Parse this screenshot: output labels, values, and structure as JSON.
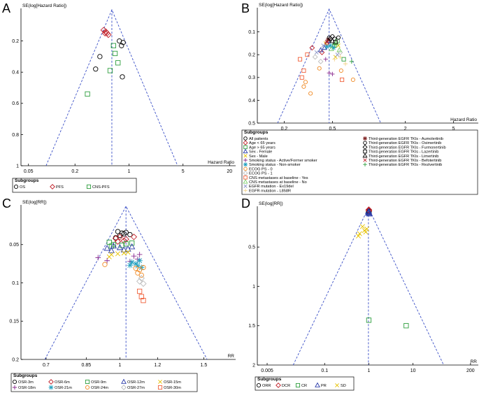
{
  "chart_data": [
    {
      "panel": "A",
      "type": "scatter",
      "ylabel": "SE(log[Hazard Ratio])",
      "xlabel": "Hazard Ratio",
      "xscale": "log",
      "xlim": [
        0.04,
        24
      ],
      "ylim": [
        0,
        1
      ],
      "yinvert": true,
      "xticks": [
        0.05,
        0.2,
        1,
        5,
        20
      ],
      "xtick_labels": [
        "0.05",
        "0.2",
        "1",
        "5",
        "20"
      ],
      "yticks": [
        0.2,
        0.4,
        0.6,
        0.8,
        1
      ],
      "ytick_labels": [
        "0.2",
        "0.4",
        "0.6",
        "0.8",
        "1"
      ],
      "pooled_estimate": 0.6,
      "funnel": true,
      "series": [
        {
          "name": "OS",
          "marker": "circle",
          "color": "#000000",
          "points": [
            [
              0.75,
              0.2
            ],
            [
              0.84,
              0.21
            ],
            [
              0.8,
              0.23
            ],
            [
              0.42,
              0.3
            ],
            [
              0.37,
              0.38
            ],
            [
              0.82,
              0.43
            ]
          ]
        },
        {
          "name": "PFS",
          "marker": "diamond",
          "color": "#c0202a",
          "points": [
            [
              0.47,
              0.13
            ],
            [
              0.5,
              0.14
            ],
            [
              0.52,
              0.15
            ],
            [
              0.54,
              0.16
            ],
            [
              0.49,
              0.15
            ]
          ]
        },
        {
          "name": "CNS-PFS",
          "marker": "square",
          "color": "#2e9e3e",
          "points": [
            [
              0.63,
              0.23
            ],
            [
              0.66,
              0.28
            ],
            [
              0.72,
              0.34
            ],
            [
              0.57,
              0.39
            ],
            [
              0.29,
              0.54
            ]
          ]
        }
      ],
      "legend": {
        "title": "Subgroups",
        "entries": [
          "OS",
          "PFS",
          "CNS-PFS"
        ]
      }
    },
    {
      "panel": "B",
      "type": "scatter",
      "ylabel": "SE(log[Hazard Ratio])",
      "xlabel": "Hazard Ratio",
      "xscale": "log",
      "xlim": [
        0.12,
        8
      ],
      "ylim": [
        0,
        0.5
      ],
      "yinvert": true,
      "xticks": [
        0.2,
        0.5,
        2,
        5
      ],
      "xtick_labels": [
        "0.2",
        "0.5",
        "2",
        "5"
      ],
      "yticks": [
        0.1,
        0.2,
        0.3,
        0.4,
        0.5
      ],
      "ytick_labels": [
        "0.1",
        "0.2",
        "0.3",
        "0.4",
        "0.5"
      ],
      "pooled_estimate": 0.47,
      "funnel": true,
      "series": [
        {
          "name": "All patients",
          "marker": "circle",
          "color": "#000000",
          "points": [
            [
              0.5,
              0.12
            ],
            [
              0.47,
              0.125
            ],
            [
              0.52,
              0.13
            ]
          ]
        },
        {
          "name": "Age < 65 years",
          "marker": "diamond",
          "color": "#c0202a",
          "points": [
            [
              0.34,
              0.17
            ],
            [
              0.45,
              0.15
            ],
            [
              0.41,
              0.19
            ]
          ]
        },
        {
          "name": "Age > 65 years",
          "marker": "square",
          "color": "#2e9e3e",
          "points": [
            [
              0.55,
              0.14
            ],
            [
              0.62,
              0.22
            ],
            [
              0.52,
              0.16
            ]
          ]
        },
        {
          "name": "Sex - Female",
          "marker": "triangle",
          "color": "#2a3aa8",
          "points": [
            [
              0.4,
              0.18
            ],
            [
              0.46,
              0.14
            ],
            [
              0.43,
              0.17
            ]
          ]
        },
        {
          "name": "Sex - Male",
          "marker": "x",
          "color": "#e6c200",
          "points": [
            [
              0.56,
              0.16
            ],
            [
              0.44,
              0.15
            ],
            [
              0.53,
              0.21
            ]
          ]
        },
        {
          "name": "Smoking status - Active/Former smoker",
          "marker": "plus",
          "color": "#8a2a8f",
          "points": [
            [
              0.47,
              0.28
            ],
            [
              0.5,
              0.285
            ],
            [
              0.44,
              0.22
            ]
          ]
        },
        {
          "name": "Smoking status - Non-smoker",
          "marker": "asterisk",
          "color": "#1f9fbf",
          "points": [
            [
              0.48,
              0.16
            ],
            [
              0.51,
              0.17
            ],
            [
              0.45,
              0.165
            ]
          ]
        },
        {
          "name": "ECOG PS - 0",
          "marker": "circle",
          "color": "#f08a24",
          "points": [
            [
              0.39,
              0.26
            ],
            [
              0.3,
              0.32
            ],
            [
              0.29,
              0.34
            ],
            [
              0.33,
              0.37
            ],
            [
              0.59,
              0.27
            ],
            [
              0.74,
              0.31
            ]
          ]
        },
        {
          "name": "ECOG PS - 1",
          "marker": "diamond",
          "color": "#bdbdbd",
          "points": [
            [
              0.36,
              0.21
            ],
            [
              0.58,
              0.19
            ],
            [
              0.4,
              0.23
            ]
          ]
        },
        {
          "name": "CNS metastases at baseline - Yes",
          "marker": "square",
          "color": "#f0603a",
          "points": [
            [
              0.27,
              0.22
            ],
            [
              0.29,
              0.27
            ],
            [
              0.28,
              0.3
            ],
            [
              0.31,
              0.2
            ],
            [
              0.6,
              0.31
            ]
          ]
        },
        {
          "name": "CNS metastases at baseline - No",
          "marker": "triangle",
          "color": "#7dcf6a",
          "points": [
            [
              0.54,
              0.15
            ],
            [
              0.49,
              0.175
            ],
            [
              0.57,
              0.18
            ]
          ]
        },
        {
          "name": "EGFR mutation - Ex19del",
          "marker": "x",
          "color": "#8a94c8",
          "points": [
            [
              0.42,
              0.16
            ],
            [
              0.55,
              0.2
            ],
            [
              0.37,
              0.19
            ]
          ]
        },
        {
          "name": "EGFR mutation - L858R",
          "marker": "plus",
          "color": "#f2d38c",
          "points": [
            [
              0.58,
              0.21
            ],
            [
              0.52,
              0.22
            ],
            [
              0.64,
              0.24
            ]
          ]
        },
        {
          "name": "Third-generation EGFR TKIs - Aumolertinib",
          "marker": "asterisk",
          "color": "#7a1a1a",
          "points": [
            [
              0.46,
              0.135
            ]
          ]
        },
        {
          "name": "Third-generation EGFR TKIs - Osimertinib",
          "marker": "circle",
          "color": "#000000",
          "points": [
            [
              0.56,
              0.125
            ]
          ]
        },
        {
          "name": "Third-generation EGFR TKIs - Furmonertinib",
          "marker": "diamond",
          "color": "#000000",
          "points": [
            [
              0.48,
              0.13
            ]
          ]
        },
        {
          "name": "Third-generation EGFR TKIs - Lazertinib",
          "marker": "square",
          "color": "#000000",
          "points": [
            [
              0.53,
              0.145
            ]
          ]
        },
        {
          "name": "Third-generation EGFR TKIs - Limertinib",
          "marker": "triangle",
          "color": "#000000",
          "points": [
            [
              0.5,
              0.14
            ]
          ]
        },
        {
          "name": "Third-generation EGFR TKIs - Befotertinib",
          "marker": "x",
          "color": "#c0202a",
          "points": [
            [
              0.45,
              0.145
            ]
          ]
        },
        {
          "name": "Third-generation EGFR TKIs - Rezivertinib",
          "marker": "plus",
          "color": "#2e9e3e",
          "points": [
            [
              0.52,
              0.155
            ],
            [
              0.72,
              0.23
            ]
          ]
        }
      ],
      "legend": {
        "title": "Subgroups"
      }
    },
    {
      "panel": "C",
      "type": "scatter",
      "ylabel": "SE(log[RR])",
      "xlabel": "RR",
      "xscale": "log",
      "xlim": [
        0.62,
        1.75
      ],
      "ylim": [
        0,
        0.2
      ],
      "yinvert": true,
      "xticks": [
        0.7,
        0.85,
        1,
        1.2,
        1.5
      ],
      "xtick_labels": [
        "0.7",
        "0.85",
        "1",
        "1.2",
        "1.5"
      ],
      "yticks": [
        0.05,
        0.1,
        0.15,
        0.2
      ],
      "ytick_labels": [
        "0.05",
        "0.1",
        "0.15",
        "0.2"
      ],
      "pooled_estimate": 1.03,
      "funnel": true,
      "series": [
        {
          "name": "OSR-3m",
          "marker": "circle",
          "color": "#000000",
          "points": [
            [
              0.99,
              0.033
            ],
            [
              1.01,
              0.035
            ],
            [
              1.0,
              0.038
            ],
            [
              1.03,
              0.034
            ],
            [
              1.05,
              0.037
            ],
            [
              0.98,
              0.041
            ],
            [
              1.02,
              0.036
            ]
          ]
        },
        {
          "name": "OSR-6m",
          "marker": "diamond",
          "color": "#c0202a",
          "points": [
            [
              0.98,
              0.042
            ],
            [
              1.0,
              0.04
            ],
            [
              1.03,
              0.043
            ],
            [
              1.07,
              0.04
            ],
            [
              0.99,
              0.046
            ],
            [
              1.02,
              0.045
            ]
          ]
        },
        {
          "name": "OSR-9m",
          "marker": "square",
          "color": "#2e9e3e",
          "points": [
            [
              0.95,
              0.047
            ],
            [
              0.97,
              0.05
            ],
            [
              1.03,
              0.049
            ],
            [
              1.06,
              0.048
            ],
            [
              0.96,
              0.052
            ],
            [
              1.01,
              0.051
            ]
          ]
        },
        {
          "name": "OSR-12m",
          "marker": "triangle",
          "color": "#2a3aa8",
          "points": [
            [
              0.94,
              0.055
            ],
            [
              0.97,
              0.052
            ],
            [
              1.0,
              0.054
            ],
            [
              1.04,
              0.056
            ],
            [
              0.96,
              0.058
            ],
            [
              1.02,
              0.057
            ],
            [
              1.06,
              0.053
            ]
          ]
        },
        {
          "name": "OSR-15m",
          "marker": "x",
          "color": "#e6c200",
          "points": [
            [
              0.96,
              0.063
            ],
            [
              0.99,
              0.062
            ],
            [
              1.02,
              0.061
            ],
            [
              0.95,
              0.066
            ],
            [
              1.04,
              0.06
            ]
          ]
        },
        {
          "name": "OSR-18m",
          "marker": "plus",
          "color": "#8a2a8f",
          "points": [
            [
              0.9,
              0.067
            ],
            [
              1.07,
              0.065
            ],
            [
              1.09,
              0.069
            ],
            [
              0.94,
              0.071
            ],
            [
              1.1,
              0.063
            ],
            [
              1.05,
              0.072
            ]
          ]
        },
        {
          "name": "OSR-21m",
          "marker": "asterisk",
          "color": "#1f9fbf",
          "points": [
            [
              1.06,
              0.073
            ],
            [
              1.08,
              0.075
            ],
            [
              1.1,
              0.071
            ],
            [
              1.09,
              0.078
            ],
            [
              1.11,
              0.08
            ],
            [
              1.05,
              0.077
            ]
          ]
        },
        {
          "name": "OSR-24m",
          "marker": "circle",
          "color": "#f08a24",
          "points": [
            [
              0.93,
              0.076
            ],
            [
              1.08,
              0.081
            ],
            [
              1.1,
              0.083
            ],
            [
              1.12,
              0.08
            ],
            [
              1.09,
              0.087
            ],
            [
              1.11,
              0.09
            ]
          ]
        },
        {
          "name": "OSR-27m",
          "marker": "diamond",
          "color": "#bdbdbd",
          "points": [
            [
              1.11,
              0.094
            ],
            [
              1.12,
              0.101
            ],
            [
              1.1,
              0.098
            ]
          ]
        },
        {
          "name": "OSR-30m",
          "marker": "square",
          "color": "#f0603a",
          "points": [
            [
              1.1,
              0.111
            ],
            [
              1.11,
              0.118
            ],
            [
              1.12,
              0.123
            ]
          ]
        }
      ],
      "legend": {
        "title": "Subgroups",
        "entries": [
          "OSR-3m",
          "OSR-6m",
          "OSR-9m",
          "OSR-12m",
          "OSR-15m",
          "OSR-18m",
          "OSR-21m",
          "OSR-24m",
          "OSR-27m",
          "OSR-30m"
        ]
      }
    },
    {
      "panel": "D",
      "type": "scatter",
      "ylabel": "SE(log[RR])",
      "xlabel": "RR",
      "xscale": "log",
      "xlim": [
        0.003,
        300
      ],
      "ylim": [
        0,
        2
      ],
      "yinvert": true,
      "xticks": [
        0.005,
        0.1,
        1,
        10,
        200
      ],
      "xtick_labels": [
        "0.005",
        "0.1",
        "1",
        "10",
        "200"
      ],
      "yticks": [
        0.5,
        1,
        1.5,
        2
      ],
      "ytick_labels": [
        "0.5",
        "1",
        "1.5",
        "2"
      ],
      "pooled_estimate": 0.98,
      "funnel": true,
      "series": [
        {
          "name": "ORR",
          "marker": "circle",
          "color": "#000000",
          "points": [
            [
              1.0,
              0.04
            ],
            [
              0.98,
              0.06
            ],
            [
              1.02,
              0.05
            ]
          ]
        },
        {
          "name": "DCR",
          "marker": "diamond",
          "color": "#c0202a",
          "points": [
            [
              0.99,
              0.03
            ],
            [
              1.01,
              0.035
            ],
            [
              1.0,
              0.025
            ]
          ]
        },
        {
          "name": "CR",
          "marker": "square",
          "color": "#2e9e3e",
          "points": [
            [
              1.0,
              1.43
            ],
            [
              7.0,
              1.5
            ]
          ]
        },
        {
          "name": "PR",
          "marker": "triangle",
          "color": "#2a3aa8",
          "points": [
            [
              1.0,
              0.05
            ],
            [
              0.97,
              0.07
            ],
            [
              1.03,
              0.08
            ],
            [
              1.0,
              0.06
            ]
          ]
        },
        {
          "name": "SD",
          "marker": "x",
          "color": "#e6c200",
          "points": [
            [
              0.72,
              0.24
            ],
            [
              0.8,
              0.29
            ],
            [
              0.62,
              0.33
            ],
            [
              0.9,
              0.27
            ],
            [
              0.58,
              0.36
            ],
            [
              0.85,
              0.31
            ]
          ]
        }
      ],
      "legend": {
        "title": "Subgroups",
        "entries": [
          "ORR",
          "DCR",
          "CR",
          "PR",
          "SD"
        ]
      }
    }
  ]
}
